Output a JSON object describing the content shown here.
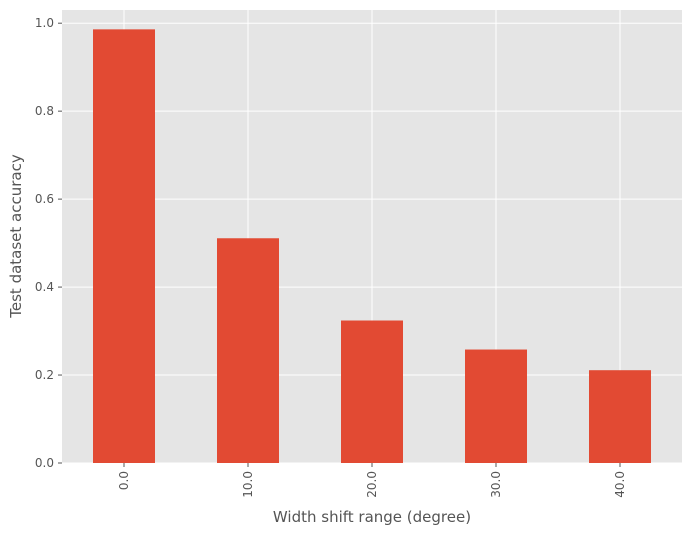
{
  "chart_data": {
    "type": "bar",
    "title": "",
    "xlabel": "Width shift range (degree)",
    "ylabel": "Test dataset accuracy",
    "categories": [
      "0.0",
      "10.0",
      "20.0",
      "30.0",
      "40.0"
    ],
    "values": [
      0.986,
      0.511,
      0.324,
      0.258,
      0.211
    ],
    "ylim": [
      0,
      1.03
    ],
    "yticks": [
      "0.0",
      "0.2",
      "0.4",
      "0.6",
      "0.8",
      "1.0"
    ],
    "grid": true,
    "legend": "none",
    "colors": {
      "bar": "#E24A33",
      "background": "#E5E5E5",
      "grid": "#FFFFFF",
      "text": "#555555"
    }
  }
}
